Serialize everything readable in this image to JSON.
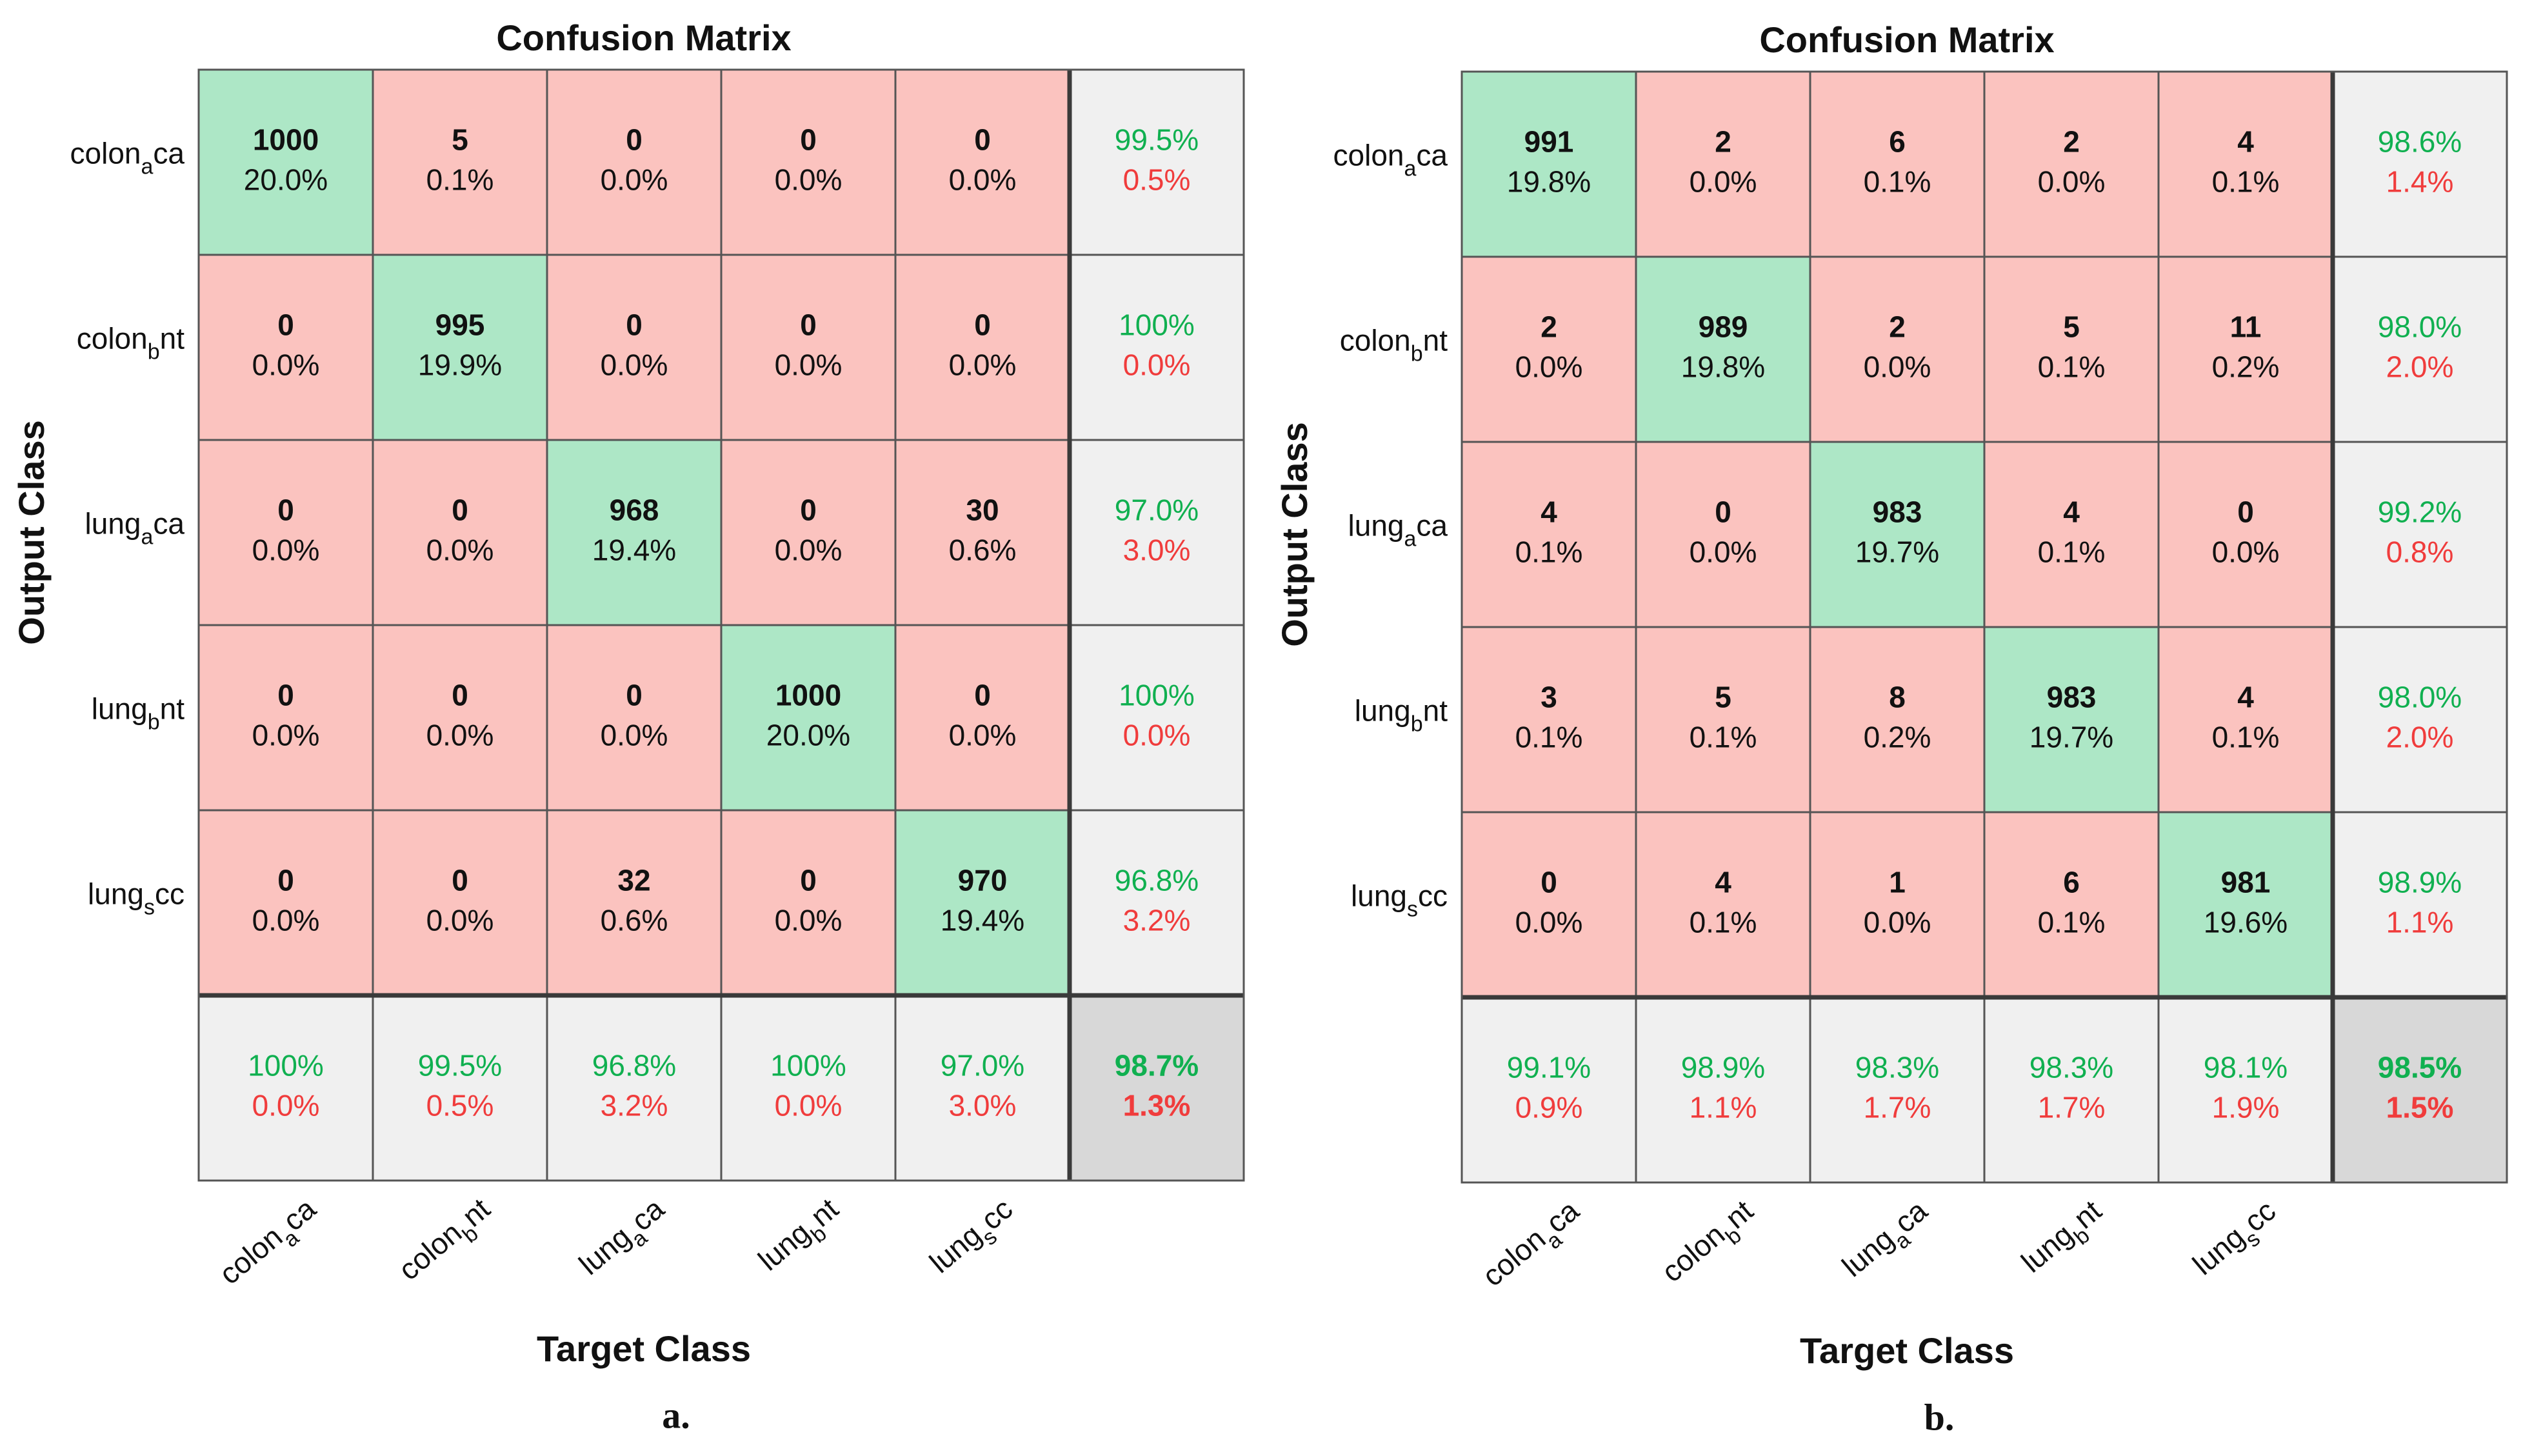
{
  "figure": {
    "panel_a_caption": "a.",
    "panel_b_caption": "b."
  },
  "chart_data": [
    {
      "type": "heatmap",
      "title": "Confusion Matrix",
      "xlabel": "Target Class",
      "ylabel": "Output Class",
      "caption": "a.",
      "classes": [
        {
          "base": "colon",
          "sub": "a",
          "suffix": "ca"
        },
        {
          "base": "colon",
          "sub": "b",
          "suffix": "nt"
        },
        {
          "base": "lung",
          "sub": "a",
          "suffix": "ca"
        },
        {
          "base": "lung",
          "sub": "b",
          "suffix": "nt"
        },
        {
          "base": "lung",
          "sub": "s",
          "suffix": "cc"
        }
      ],
      "counts": [
        [
          1000,
          5,
          0,
          0,
          0
        ],
        [
          0,
          995,
          0,
          0,
          0
        ],
        [
          0,
          0,
          968,
          0,
          30
        ],
        [
          0,
          0,
          0,
          1000,
          0
        ],
        [
          0,
          0,
          32,
          0,
          970
        ]
      ],
      "percents": [
        [
          "20.0%",
          "0.1%",
          "0.0%",
          "0.0%",
          "0.0%"
        ],
        [
          "0.0%",
          "19.9%",
          "0.0%",
          "0.0%",
          "0.0%"
        ],
        [
          "0.0%",
          "0.0%",
          "19.4%",
          "0.0%",
          "0.6%"
        ],
        [
          "0.0%",
          "0.0%",
          "0.0%",
          "20.0%",
          "0.0%"
        ],
        [
          "0.0%",
          "0.0%",
          "0.6%",
          "0.0%",
          "19.4%"
        ]
      ],
      "row_summary": [
        {
          "correct": "99.5%",
          "error": "0.5%"
        },
        {
          "correct": "100%",
          "error": "0.0%"
        },
        {
          "correct": "97.0%",
          "error": "3.0%"
        },
        {
          "correct": "100%",
          "error": "0.0%"
        },
        {
          "correct": "96.8%",
          "error": "3.2%"
        }
      ],
      "col_summary": [
        {
          "correct": "100%",
          "error": "0.0%"
        },
        {
          "correct": "99.5%",
          "error": "0.5%"
        },
        {
          "correct": "96.8%",
          "error": "3.2%"
        },
        {
          "correct": "100%",
          "error": "0.0%"
        },
        {
          "correct": "97.0%",
          "error": "3.0%"
        }
      ],
      "overall": {
        "correct": "98.7%",
        "error": "1.3%"
      }
    },
    {
      "type": "heatmap",
      "title": "Confusion Matrix",
      "xlabel": "Target Class",
      "ylabel": "Output Class",
      "caption": "b.",
      "classes": [
        {
          "base": "colon",
          "sub": "a",
          "suffix": "ca"
        },
        {
          "base": "colon",
          "sub": "b",
          "suffix": "nt"
        },
        {
          "base": "lung",
          "sub": "a",
          "suffix": "ca"
        },
        {
          "base": "lung",
          "sub": "b",
          "suffix": "nt"
        },
        {
          "base": "lung",
          "sub": "s",
          "suffix": "cc"
        }
      ],
      "counts": [
        [
          991,
          2,
          6,
          2,
          4
        ],
        [
          2,
          989,
          2,
          5,
          11
        ],
        [
          4,
          0,
          983,
          4,
          0
        ],
        [
          3,
          5,
          8,
          983,
          4
        ],
        [
          0,
          4,
          1,
          6,
          981
        ]
      ],
      "percents": [
        [
          "19.8%",
          "0.0%",
          "0.1%",
          "0.0%",
          "0.1%"
        ],
        [
          "0.0%",
          "19.8%",
          "0.0%",
          "0.1%",
          "0.2%"
        ],
        [
          "0.1%",
          "0.0%",
          "19.7%",
          "0.1%",
          "0.0%"
        ],
        [
          "0.1%",
          "0.1%",
          "0.2%",
          "19.7%",
          "0.1%"
        ],
        [
          "0.0%",
          "0.1%",
          "0.0%",
          "0.1%",
          "19.6%"
        ]
      ],
      "row_summary": [
        {
          "correct": "98.6%",
          "error": "1.4%"
        },
        {
          "correct": "98.0%",
          "error": "2.0%"
        },
        {
          "correct": "99.2%",
          "error": "0.8%"
        },
        {
          "correct": "98.0%",
          "error": "2.0%"
        },
        {
          "correct": "98.9%",
          "error": "1.1%"
        }
      ],
      "col_summary": [
        {
          "correct": "99.1%",
          "error": "0.9%"
        },
        {
          "correct": "98.9%",
          "error": "1.1%"
        },
        {
          "correct": "98.3%",
          "error": "1.7%"
        },
        {
          "correct": "98.3%",
          "error": "1.7%"
        },
        {
          "correct": "98.1%",
          "error": "1.9%"
        }
      ],
      "overall": {
        "correct": "98.5%",
        "error": "1.5%"
      }
    }
  ],
  "colors": {
    "diag_fill": "#ade7c6",
    "offdiag_fill": "#fbc3bf",
    "summary_fill": "#f0f0f0",
    "overall_fill": "#d8d8d8",
    "correct_text": "#10b050",
    "error_text": "#f03c3c",
    "grid_line": "#555555",
    "text": "#111111"
  }
}
